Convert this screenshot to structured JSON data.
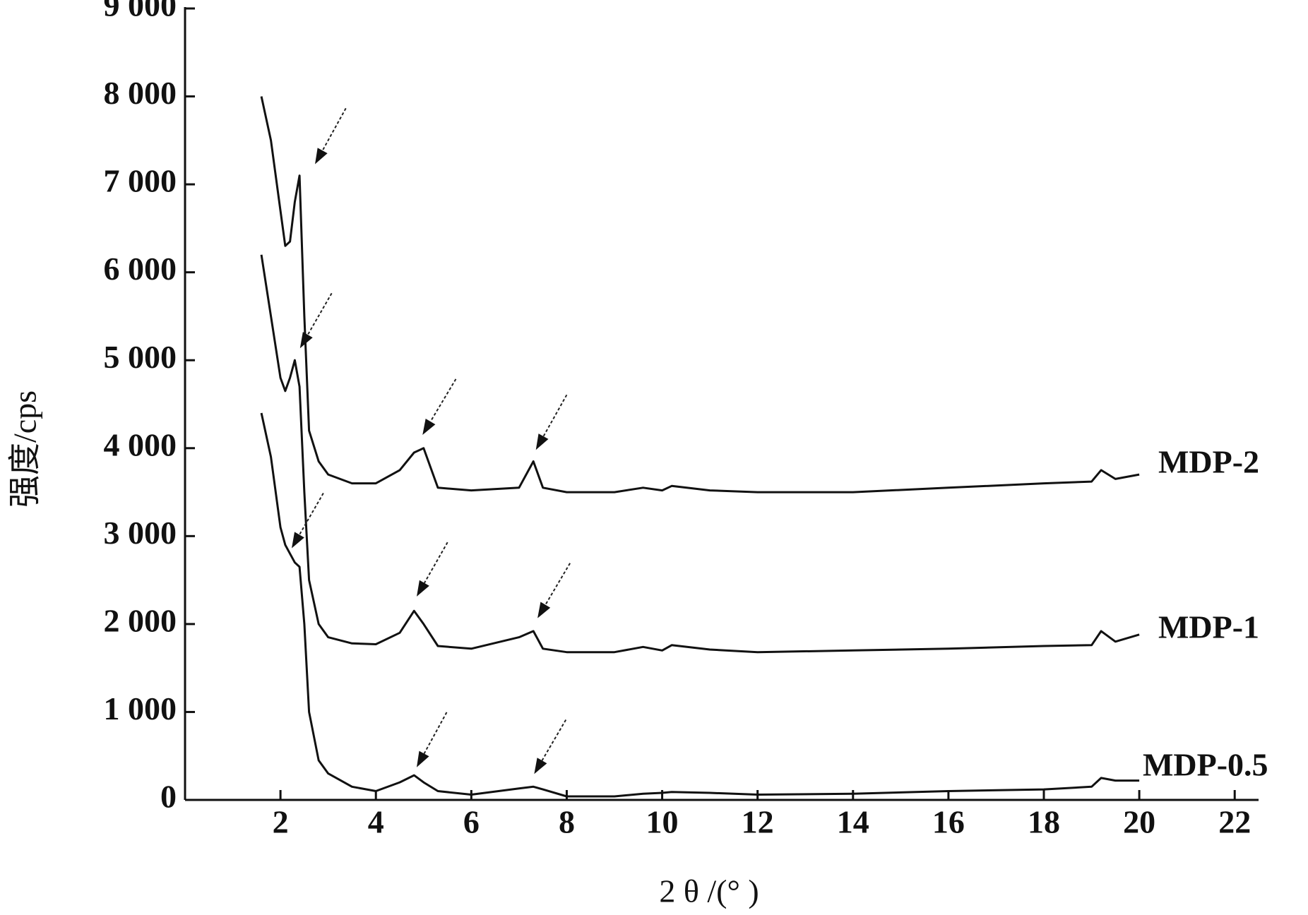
{
  "chart_data": {
    "type": "line",
    "x_label": "2 θ /(°  )",
    "y_label": "强度/cps",
    "xlim": [
      0,
      22.5
    ],
    "ylim": [
      0,
      9000
    ],
    "xticks": [
      2,
      4,
      6,
      8,
      10,
      12,
      14,
      16,
      18,
      20,
      22
    ],
    "yticks": [
      0,
      {
        "value": 1000,
        "label": "1 000"
      },
      {
        "value": 2000,
        "label": "2 000"
      },
      {
        "value": 3000,
        "label": "3 000"
      },
      {
        "value": 4000,
        "label": "4 000"
      },
      {
        "value": 5000,
        "label": "5 000"
      },
      {
        "value": 6000,
        "label": "6 000"
      },
      {
        "value": 7000,
        "label": "7 000"
      },
      {
        "value": 8000,
        "label": "8 000"
      },
      {
        "value": 9000,
        "label": "9 000"
      }
    ],
    "x": [
      1.6,
      1.8,
      2.0,
      2.1,
      2.2,
      2.3,
      2.4,
      2.5,
      2.6,
      2.8,
      3.0,
      3.5,
      4.0,
      4.5,
      4.8,
      5.0,
      5.3,
      6.0,
      7.0,
      7.3,
      7.5,
      8.0,
      9.0,
      9.6,
      10.0,
      10.2,
      11,
      12,
      14,
      16,
      18,
      19,
      19.2,
      19.5,
      20
    ],
    "series": [
      {
        "name": "MDP-2",
        "color": "#111111",
        "values": [
          8000,
          7500,
          6700,
          6300,
          6350,
          6800,
          7100,
          5500,
          4200,
          3850,
          3700,
          3600,
          3600,
          3750,
          3950,
          4000,
          3550,
          3520,
          3550,
          3850,
          3550,
          3500,
          3500,
          3550,
          3520,
          3570,
          3520,
          3500,
          3500,
          3550,
          3600,
          3620,
          3750,
          3650,
          3700
        ]
      },
      {
        "name": "MDP-1",
        "color": "#111111",
        "values": [
          6200,
          5500,
          4800,
          4650,
          4800,
          5000,
          4700,
          3500,
          2500,
          2000,
          1850,
          1780,
          1770,
          1900,
          2150,
          2000,
          1750,
          1720,
          1850,
          1920,
          1720,
          1680,
          1680,
          1740,
          1700,
          1760,
          1710,
          1680,
          1700,
          1720,
          1750,
          1760,
          1920,
          1800,
          1880
        ]
      },
      {
        "name": "MDP-0.5",
        "color": "#111111",
        "values": [
          4400,
          3900,
          3100,
          2900,
          2800,
          2700,
          2650,
          2000,
          1000,
          450,
          300,
          150,
          100,
          200,
          280,
          200,
          100,
          60,
          130,
          150,
          120,
          40,
          40,
          70,
          80,
          90,
          80,
          60,
          70,
          100,
          120,
          150,
          250,
          220,
          220
        ]
      }
    ]
  }
}
